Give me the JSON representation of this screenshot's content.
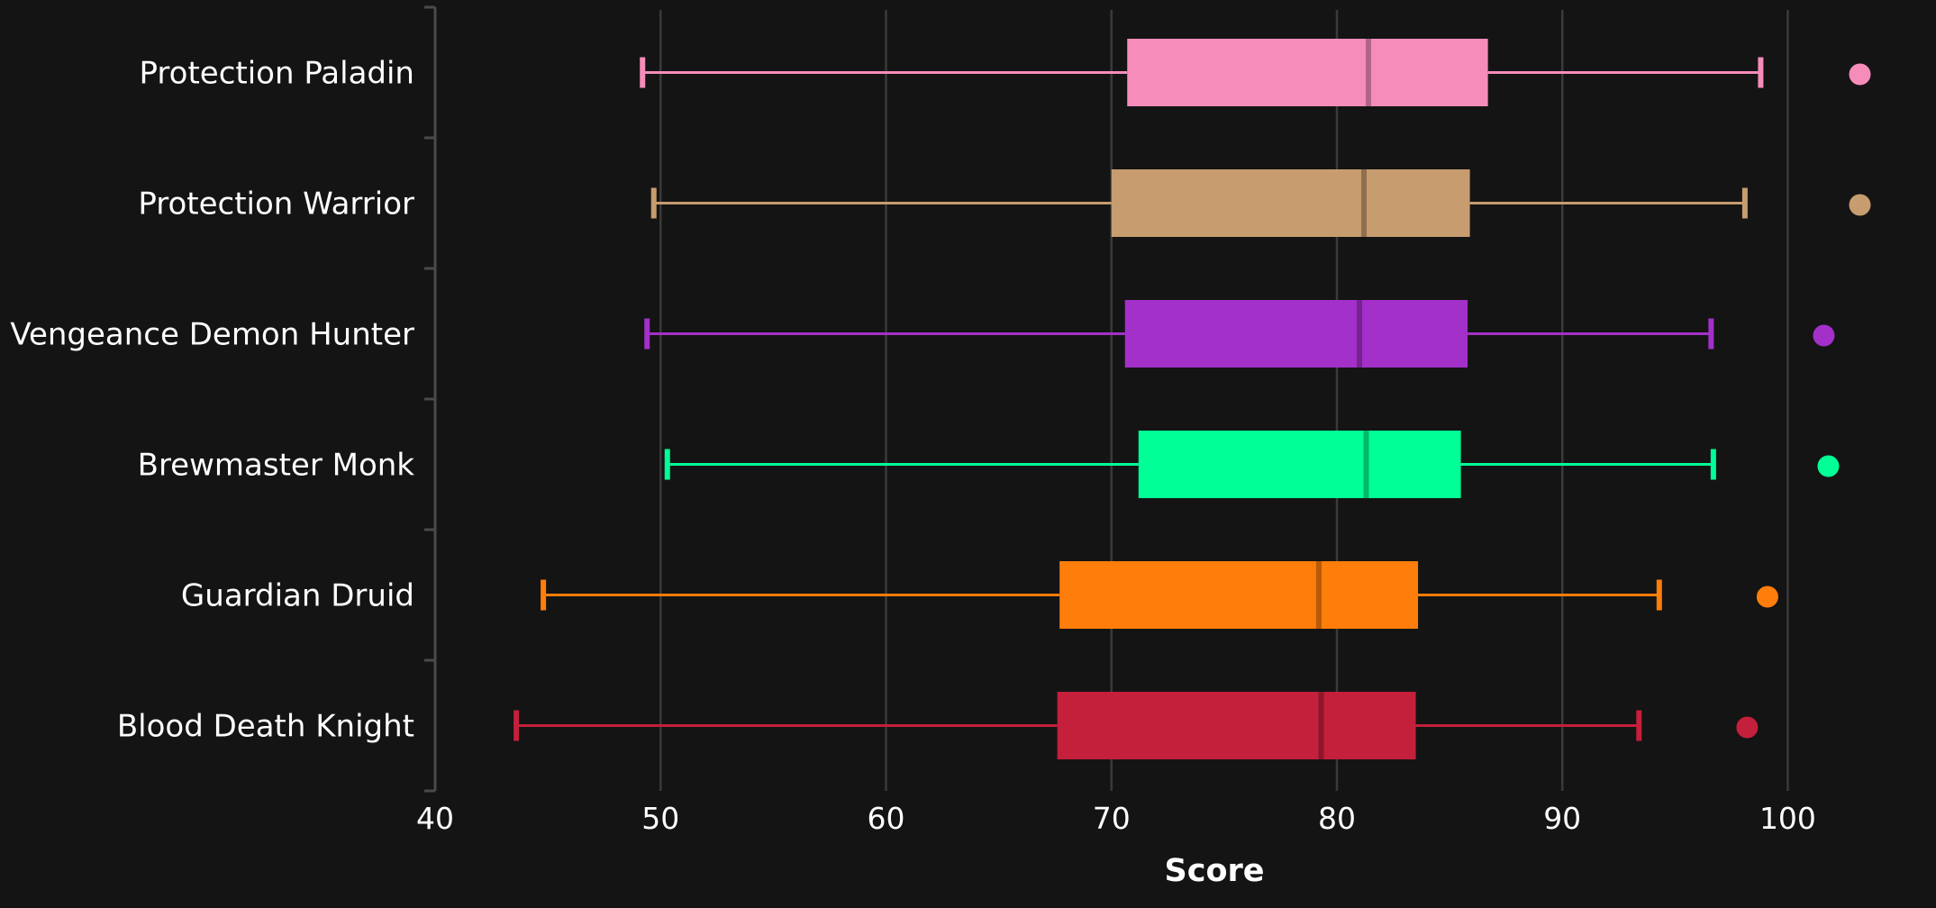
{
  "chart_data": {
    "type": "box",
    "orientation": "horizontal",
    "xlabel": "Score",
    "xlim": [
      40,
      102.5
    ],
    "xticks": [
      40,
      50,
      60,
      70,
      80,
      90,
      100
    ],
    "grid": "vertical",
    "series": [
      {
        "name": "Protection Paladin",
        "color": "#F58CBA",
        "min": 49.2,
        "q1": 70.7,
        "median": 81.4,
        "q3": 86.7,
        "max": 98.8,
        "outlier": 103.2
      },
      {
        "name": "Protection Warrior",
        "color": "#C79C6E",
        "min": 49.7,
        "q1": 70.0,
        "median": 81.2,
        "q3": 85.9,
        "max": 98.1,
        "outlier": 103.2
      },
      {
        "name": "Vengeance Demon Hunter",
        "color": "#A330C9",
        "min": 49.4,
        "q1": 70.6,
        "median": 81.0,
        "q3": 85.8,
        "max": 96.6,
        "outlier": 101.6
      },
      {
        "name": "Brewmaster Monk",
        "color": "#00FF96",
        "min": 50.3,
        "q1": 71.2,
        "median": 81.3,
        "q3": 85.5,
        "max": 96.7,
        "outlier": 101.8
      },
      {
        "name": "Guardian Druid",
        "color": "#FF7D0A",
        "min": 44.8,
        "q1": 67.7,
        "median": 79.2,
        "q3": 83.6,
        "max": 94.3,
        "outlier": 99.1
      },
      {
        "name": "Blood Death Knight",
        "color": "#C41F3B",
        "min": 43.6,
        "q1": 67.6,
        "median": 79.3,
        "q3": 83.5,
        "max": 93.4,
        "outlier": 98.2
      }
    ]
  }
}
